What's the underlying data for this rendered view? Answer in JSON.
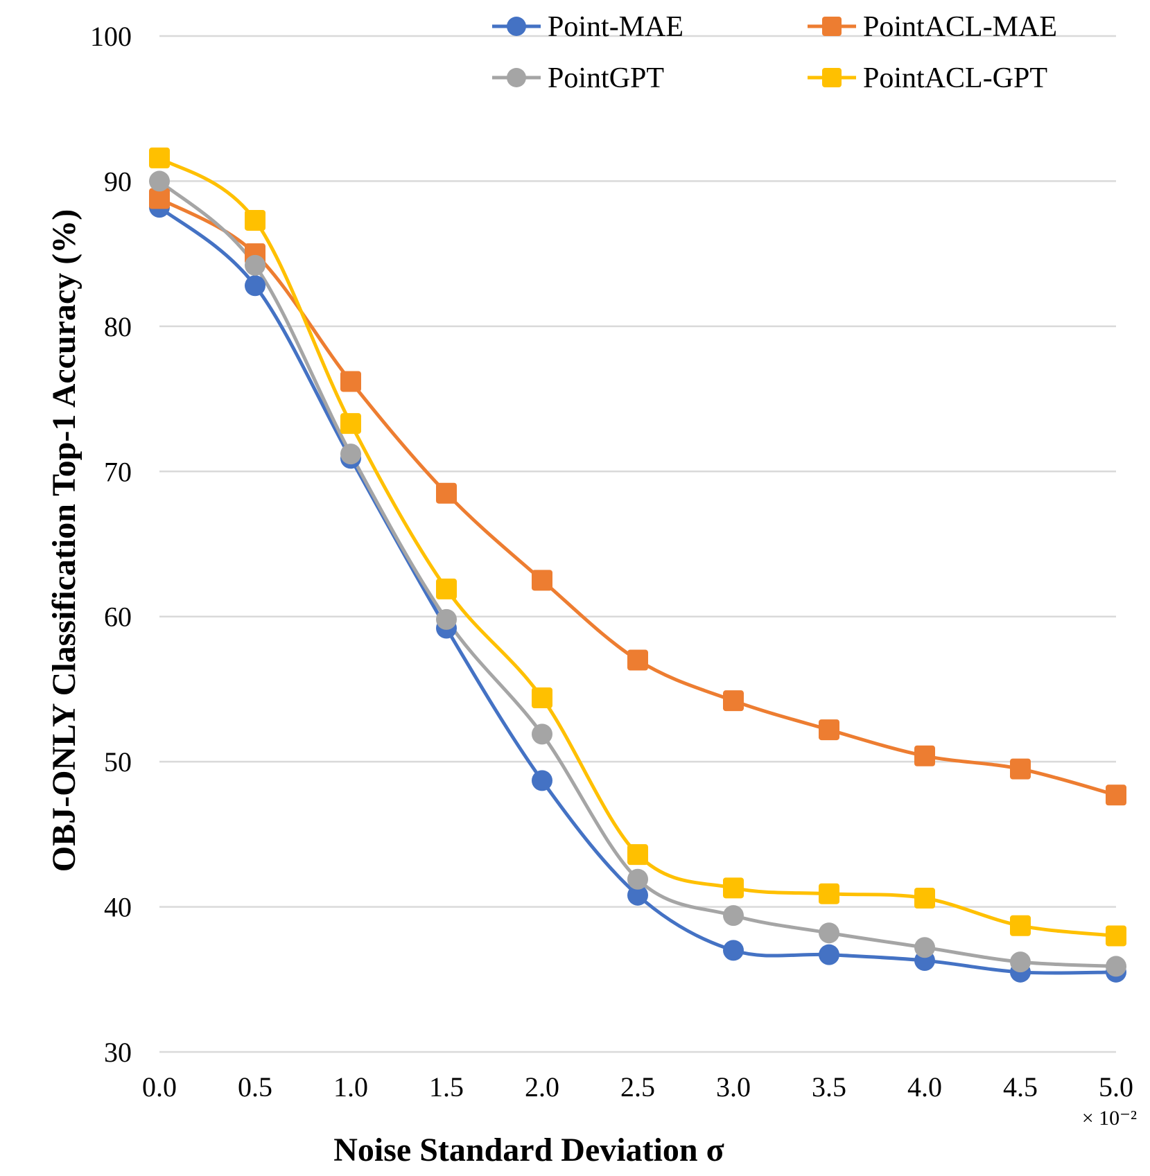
{
  "chart_data": {
    "type": "line",
    "title": "",
    "xlabel": "Noise Standard Deviation σ",
    "ylabel": "OBJ-ONLY Classification Top-1 Accuracy (%)",
    "x_multiplier_label": "× 10⁻²",
    "x": [
      0.0,
      0.5,
      1.0,
      1.5,
      2.0,
      2.5,
      3.0,
      3.5,
      4.0,
      4.5,
      5.0
    ],
    "x_tick_labels": [
      "0.0",
      "0.5",
      "1.0",
      "1.5",
      "2.0",
      "2.5",
      "3.0",
      "3.5",
      "4.0",
      "4.5",
      "5.0"
    ],
    "xlim": [
      0.0,
      5.0
    ],
    "ylim": [
      30,
      100
    ],
    "y_ticks": [
      30,
      40,
      50,
      60,
      70,
      80,
      90,
      100
    ],
    "grid": true,
    "legend_position": "top-right",
    "series": [
      {
        "name": "Point-MAE",
        "color": "#4472C4",
        "marker": "circle",
        "values": [
          88.2,
          82.8,
          70.9,
          59.2,
          48.7,
          40.8,
          37.0,
          36.7,
          36.3,
          35.5,
          35.5
        ]
      },
      {
        "name": "PointACL-MAE",
        "color": "#ED7D31",
        "marker": "square",
        "values": [
          88.8,
          85.0,
          76.2,
          68.5,
          62.5,
          57.0,
          54.2,
          52.2,
          50.4,
          49.5,
          47.7
        ]
      },
      {
        "name": "PointGPT",
        "color": "#A5A5A5",
        "marker": "circle",
        "values": [
          90.0,
          84.2,
          71.2,
          59.8,
          51.9,
          41.9,
          39.4,
          38.2,
          37.2,
          36.2,
          35.9
        ]
      },
      {
        "name": "PointACL-GPT",
        "color": "#FFC000",
        "marker": "square",
        "values": [
          91.6,
          87.3,
          73.3,
          61.9,
          54.4,
          43.6,
          41.3,
          40.9,
          40.6,
          38.7,
          38.0
        ]
      }
    ]
  }
}
